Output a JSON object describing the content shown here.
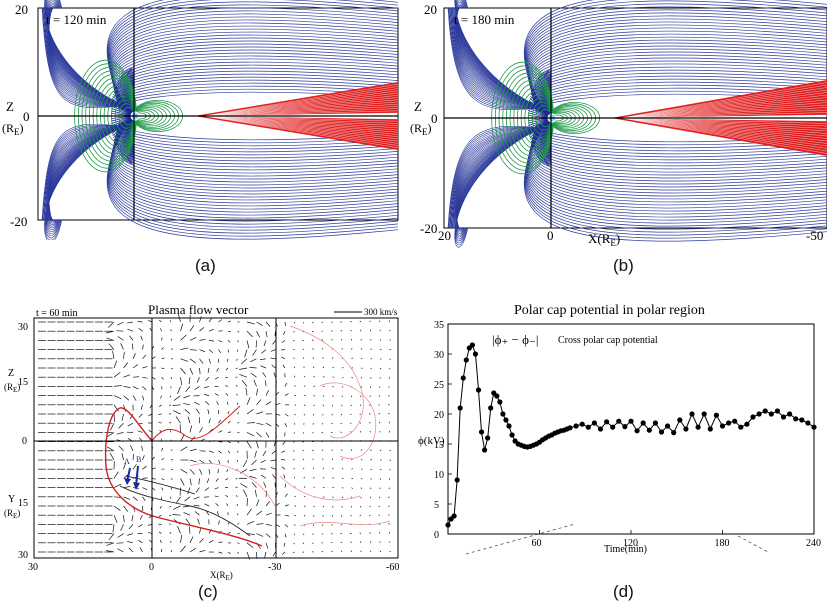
{
  "panels": {
    "a": {
      "caption": "(a)",
      "time_label": "t = 120 min",
      "axis_label": "Z",
      "axis_unit": "(R",
      "axis_unit_sub": "E",
      "axis_unit_close": ")",
      "ticks": [
        "20",
        "0",
        "-20"
      ]
    },
    "b": {
      "caption": "(b)",
      "time_label": "t = 180 min",
      "axis_label": "Z",
      "axis_unit": "(R",
      "axis_unit_sub": "E",
      "axis_unit_close": ")",
      "ticks": [
        "20",
        "0",
        "-20"
      ],
      "xticks": [
        "20",
        "0",
        "-50"
      ],
      "xlabel": "X(R",
      "xlabel_sub": "E",
      "xlabel_close": ")"
    },
    "c": {
      "caption": "(c)",
      "title": "Plasma flow vector",
      "time_label": "t = 60 min",
      "scale_label": "300 km/s",
      "z_label": "Z",
      "y_label": "Y",
      "unit_open": "(R",
      "unit_sub": "E",
      "unit_close": ")",
      "yticks": [
        "30",
        "15",
        "0",
        "15",
        "30"
      ],
      "xticks": [
        "30",
        "0",
        "-30",
        "-60"
      ],
      "xlabel": "X(R",
      "xlabel_sub": "E",
      "xlabel_close": ")",
      "marker_a": "A",
      "marker_b": "B"
    },
    "d": {
      "caption": "(d)"
    }
  },
  "chart_data": {
    "type": "line",
    "title": "Polar cap potential in polar region",
    "legend": "Cross polar cap potential",
    "legend_formula": "|ϕ₊ − ϕ₋|",
    "xlabel": "Time(min)",
    "ylabel": "ϕ(kV)",
    "xlim": [
      0,
      240
    ],
    "ylim": [
      0,
      35
    ],
    "xticks": [
      "60",
      "120",
      "180",
      "240"
    ],
    "yticks": [
      "0",
      "5",
      "10",
      "15",
      "20",
      "25",
      "30",
      "35"
    ],
    "series": [
      {
        "x": [
          0,
          2,
          4,
          6,
          8,
          10,
          12,
          14,
          16,
          18,
          20,
          22,
          24,
          26,
          28,
          30,
          32,
          34,
          36,
          38,
          40,
          42,
          44,
          46,
          48,
          50,
          52,
          54,
          56,
          58,
          60,
          62,
          64,
          66,
          68,
          70,
          72,
          74,
          76,
          78,
          80,
          84,
          88,
          92,
          96,
          100,
          104,
          108,
          112,
          116,
          120,
          124,
          128,
          132,
          136,
          140,
          144,
          148,
          152,
          156,
          160,
          164,
          168,
          172,
          176,
          180,
          184,
          188,
          192,
          196,
          200,
          204,
          208,
          212,
          216,
          220,
          224,
          228,
          232,
          236,
          240
        ],
        "y": [
          1.5,
          2.5,
          3,
          9,
          21,
          26,
          29,
          31,
          31.5,
          30,
          24,
          17,
          14,
          16,
          21,
          23.5,
          23,
          22,
          20,
          19,
          18,
          16.5,
          15.5,
          15,
          14.8,
          14.6,
          14.5,
          14.6,
          14.8,
          15,
          15.3,
          15.7,
          16,
          16.3,
          16.5,
          16.8,
          17,
          17.2,
          17.3,
          17.5,
          17.7,
          18,
          18.3,
          17.8,
          18.5,
          17.5,
          18.7,
          17.8,
          18.8,
          17.9,
          18.8,
          17.2,
          18.5,
          17.3,
          18.5,
          17,
          18,
          16.9,
          19,
          17.5,
          20,
          17.8,
          20,
          17.5,
          19.8,
          18,
          18.5,
          18.8,
          17.8,
          18.3,
          19.5,
          20,
          20.5,
          20,
          20.5,
          19.5,
          20,
          19.2,
          19,
          18.5,
          17.8
        ]
      }
    ]
  }
}
